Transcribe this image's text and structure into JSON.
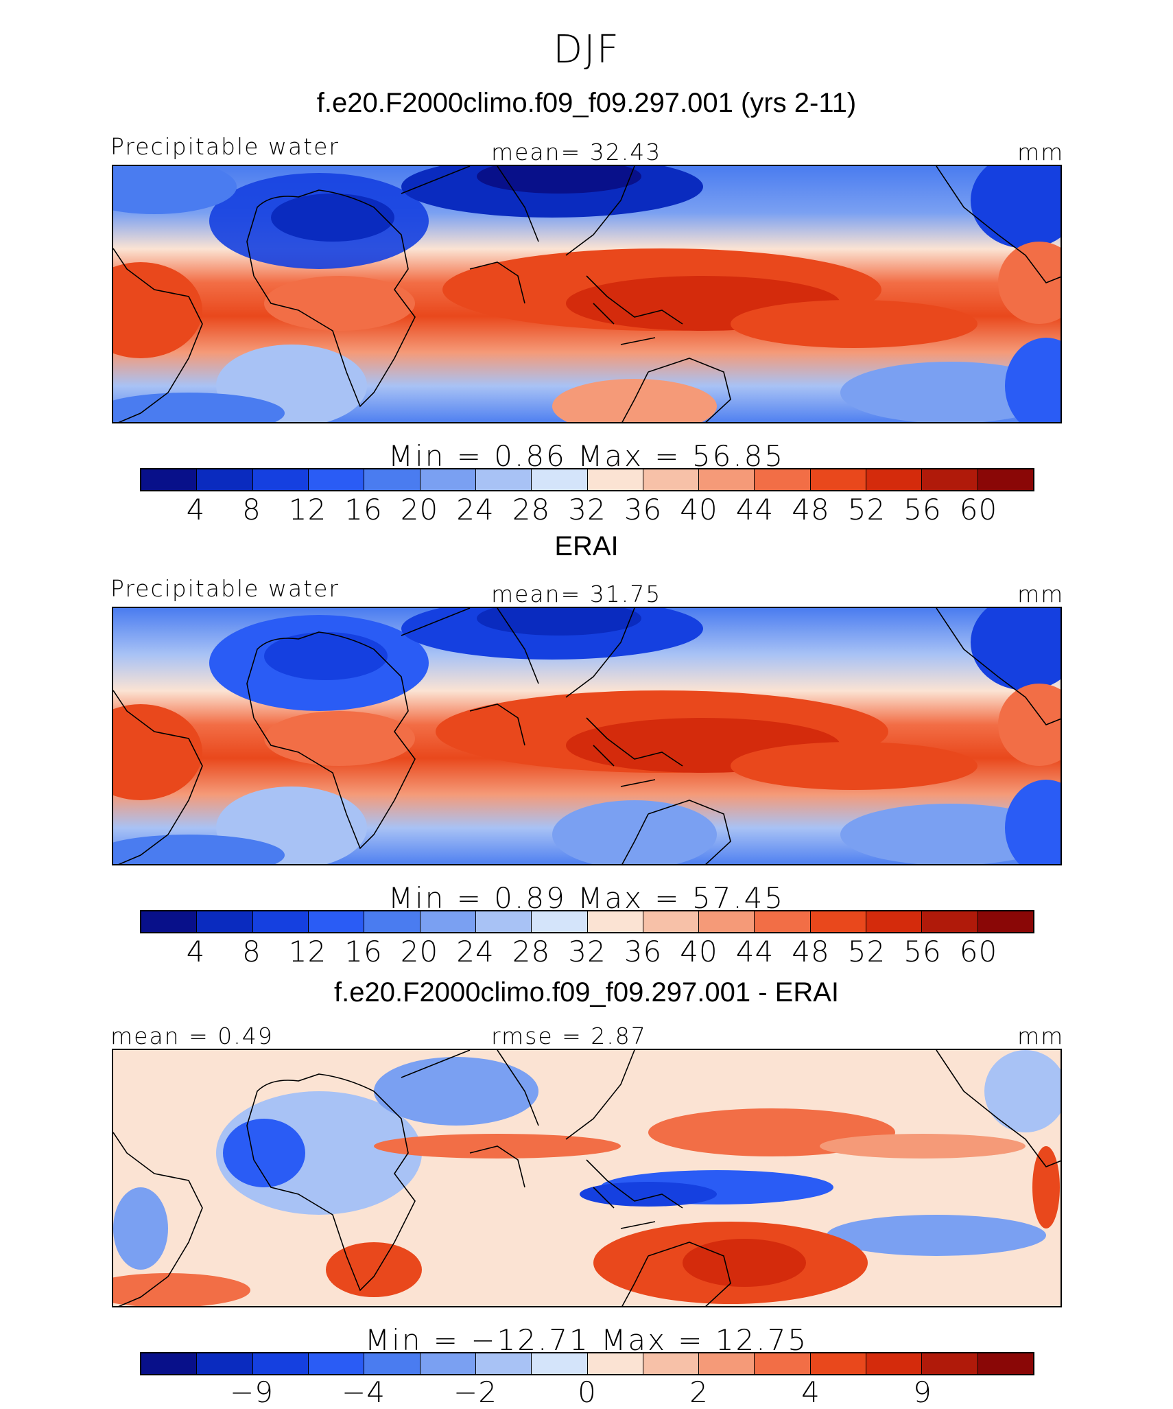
{
  "figure": {
    "title": "DJF"
  },
  "panels": [
    {
      "id": "model",
      "title": "f.e20.F2000climo.f09_f09.297.001 (yrs 2-11)",
      "left_label": "Precipitable water",
      "center_label": "mean=   32.43",
      "units": "mm",
      "minmax": "Min  =     0.86  Max  =    56.85",
      "colorbar_ticks": [
        "4",
        "8",
        "12",
        "16",
        "20",
        "24",
        "28",
        "32",
        "36",
        "40",
        "44",
        "48",
        "52",
        "56",
        "60"
      ]
    },
    {
      "id": "obs",
      "title": "ERAI",
      "left_label": "Precipitable water",
      "center_label": "mean=   31.75",
      "units": "mm",
      "minmax": "Min  =     0.89  Max  =    57.45",
      "colorbar_ticks": [
        "4",
        "8",
        "12",
        "16",
        "20",
        "24",
        "28",
        "32",
        "36",
        "40",
        "44",
        "48",
        "52",
        "56",
        "60"
      ]
    },
    {
      "id": "diff",
      "title": "f.e20.F2000climo.f09_f09.297.001 - ERAI",
      "left_label": "mean =    0.49",
      "center_label": "rmse =    2.87",
      "units": "mm",
      "minmax": "Min  = −12.71  Max  =    12.75",
      "colorbar_ticks": [
        "−9",
        "−4",
        "−2",
        "0",
        "2",
        "4",
        "9"
      ]
    }
  ],
  "colors": {
    "palette": [
      "#08108a",
      "#0a2bbf",
      "#1540e0",
      "#2a5cf5",
      "#4a7cf0",
      "#7aa0f2",
      "#a8c2f5",
      "#d4e4fa",
      "#fbe3d3",
      "#f7c1a8",
      "#f59a78",
      "#f26e46",
      "#e9481c",
      "#d42b0c",
      "#b01a0a",
      "#8a0706"
    ]
  }
}
